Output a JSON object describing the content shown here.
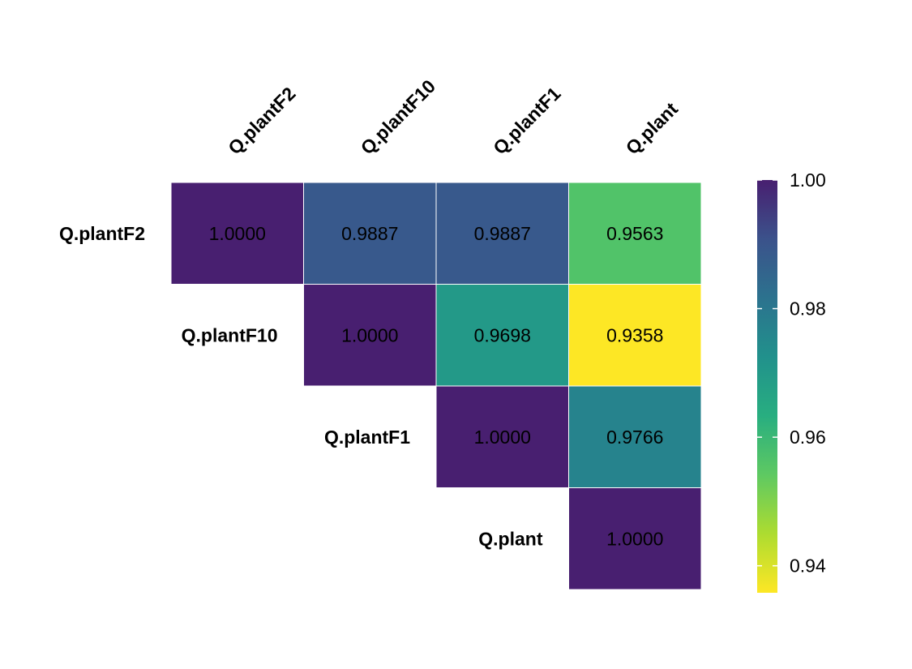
{
  "chart_data": {
    "type": "heatmap",
    "layout": "upper-triangle",
    "columns": [
      "Q.plantF2",
      "Q.plantF10",
      "Q.plantF1",
      "Q.plant"
    ],
    "rows": [
      "Q.plantF2",
      "Q.plantF10",
      "Q.plantF1",
      "Q.plant"
    ],
    "cells": [
      {
        "row": "Q.plantF2",
        "col": "Q.plantF2",
        "value": 1.0,
        "label": "1.0000"
      },
      {
        "row": "Q.plantF2",
        "col": "Q.plantF10",
        "value": 0.9887,
        "label": "0.9887"
      },
      {
        "row": "Q.plantF2",
        "col": "Q.plantF1",
        "value": 0.9887,
        "label": "0.9887"
      },
      {
        "row": "Q.plantF2",
        "col": "Q.plant",
        "value": 0.9563,
        "label": "0.9563"
      },
      {
        "row": "Q.plantF10",
        "col": "Q.plantF10",
        "value": 1.0,
        "label": "1.0000"
      },
      {
        "row": "Q.plantF10",
        "col": "Q.plantF1",
        "value": 0.9698,
        "label": "0.9698"
      },
      {
        "row": "Q.plantF10",
        "col": "Q.plant",
        "value": 0.9358,
        "label": "0.9358"
      },
      {
        "row": "Q.plantF1",
        "col": "Q.plantF1",
        "value": 1.0,
        "label": "1.0000"
      },
      {
        "row": "Q.plantF1",
        "col": "Q.plant",
        "value": 0.9766,
        "label": "0.9766"
      },
      {
        "row": "Q.plant",
        "col": "Q.plant",
        "value": 1.0,
        "label": "1.0000"
      }
    ],
    "colorbar": {
      "range": [
        0.9358,
        1.0
      ],
      "ticks": [
        1.0,
        0.98,
        0.96,
        0.94
      ],
      "tick_labels": [
        "1.00",
        "0.98",
        "0.96",
        "0.94"
      ],
      "palette": "viridis-reversed",
      "colors_high_to_low": [
        "#481f70",
        "#3b528b",
        "#2c728e",
        "#21918c",
        "#28ae80",
        "#5ec962",
        "#addc30",
        "#fde725"
      ]
    },
    "grid": false,
    "legend_position": "right"
  }
}
